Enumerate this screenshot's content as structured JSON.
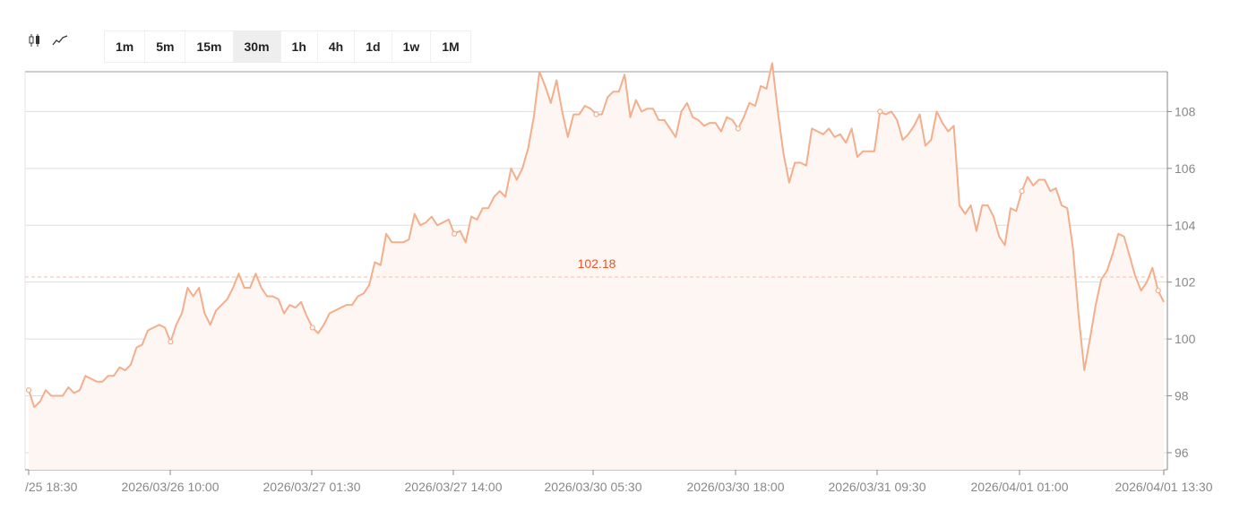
{
  "toolbar": {
    "chart_types": [
      {
        "name": "candlestick-icon",
        "active": false
      },
      {
        "name": "line-chart-icon",
        "active": true
      }
    ],
    "timeframes": [
      "1m",
      "5m",
      "15m",
      "30m",
      "1h",
      "4h",
      "1d",
      "1w",
      "1M"
    ],
    "active_timeframe": "30m"
  },
  "colors": {
    "line": "#f3ae8c",
    "area": "#fef6f2",
    "reference": "#f3c2a8",
    "reference_label": "#e8542a",
    "grid": "#dddddd",
    "axis": "#888888",
    "tick_text": "#888888"
  },
  "chart_data": {
    "type": "area",
    "y_ticks": [
      96,
      98,
      100,
      102,
      104,
      106,
      108
    ],
    "x_tick_labels": [
      "/25 18:30",
      "2026/03/26 10:00",
      "2026/03/27 01:30",
      "2026/03/27 14:00",
      "2026/03/30 05:30",
      "2026/03/30 18:00",
      "2026/03/31 09:30",
      "2026/04/01 01:00",
      "2026/04/01 13:30"
    ],
    "reference_line": {
      "value": 102.18,
      "label": "102.18",
      "style": "dashed"
    },
    "grid": {
      "horizontal": true,
      "vertical": false
    },
    "marked_point_indices": [
      0,
      25,
      50,
      75,
      100,
      125,
      150,
      175,
      199
    ],
    "values": [
      98.2,
      97.6,
      97.8,
      98.2,
      98.0,
      98.0,
      98.0,
      98.3,
      98.1,
      98.2,
      98.7,
      98.6,
      98.5,
      98.5,
      98.7,
      98.7,
      99.0,
      98.9,
      99.1,
      99.7,
      99.8,
      100.3,
      100.4,
      100.5,
      100.4,
      99.9,
      100.5,
      100.9,
      101.8,
      101.5,
      101.8,
      100.9,
      100.5,
      101.0,
      101.2,
      101.4,
      101.8,
      102.3,
      101.8,
      101.8,
      102.3,
      101.8,
      101.5,
      101.5,
      101.4,
      100.9,
      101.2,
      101.1,
      101.3,
      100.8,
      100.4,
      100.2,
      100.5,
      100.9,
      101.0,
      101.1,
      101.2,
      101.2,
      101.5,
      101.6,
      101.9,
      102.7,
      102.6,
      103.7,
      103.4,
      103.4,
      103.4,
      103.5,
      104.4,
      104.0,
      104.1,
      104.3,
      104.0,
      104.1,
      104.2,
      103.7,
      103.8,
      103.4,
      104.3,
      104.2,
      104.6,
      104.6,
      105.0,
      105.2,
      105.0,
      106.0,
      105.6,
      106.0,
      106.7,
      107.8,
      109.4,
      108.9,
      108.3,
      109.1,
      108.0,
      107.1,
      107.9,
      107.9,
      108.2,
      108.1,
      107.9,
      107.9,
      108.5,
      108.7,
      108.7,
      109.3,
      107.8,
      108.4,
      108.0,
      108.1,
      108.1,
      107.7,
      107.7,
      107.4,
      107.1,
      108.0,
      108.3,
      107.8,
      107.7,
      107.5,
      107.6,
      107.6,
      107.3,
      107.8,
      107.7,
      107.4,
      107.8,
      108.3,
      108.2,
      108.9,
      108.8,
      109.7,
      108.0,
      106.5,
      105.5,
      106.2,
      106.2,
      106.1,
      107.4,
      107.3,
      107.2,
      107.4,
      107.1,
      107.2,
      106.9,
      107.4,
      106.4,
      106.6,
      106.6,
      106.6,
      108.0,
      107.9,
      108.0,
      107.7,
      107.0,
      107.2,
      107.5,
      107.9,
      106.8,
      107.0,
      108.0,
      107.6,
      107.3,
      107.5,
      104.7,
      104.4,
      104.7,
      103.8,
      104.7,
      104.7,
      104.3,
      103.6,
      103.3,
      104.6,
      104.5,
      105.2,
      105.7,
      105.4,
      105.6,
      105.6,
      105.2,
      105.3,
      104.7,
      104.6,
      103.2,
      100.8,
      98.9,
      100.0,
      101.2,
      102.1,
      102.4,
      103.0,
      103.7,
      103.6,
      102.9,
      102.2,
      101.7,
      102.0,
      102.5,
      101.7,
      101.3
    ]
  }
}
